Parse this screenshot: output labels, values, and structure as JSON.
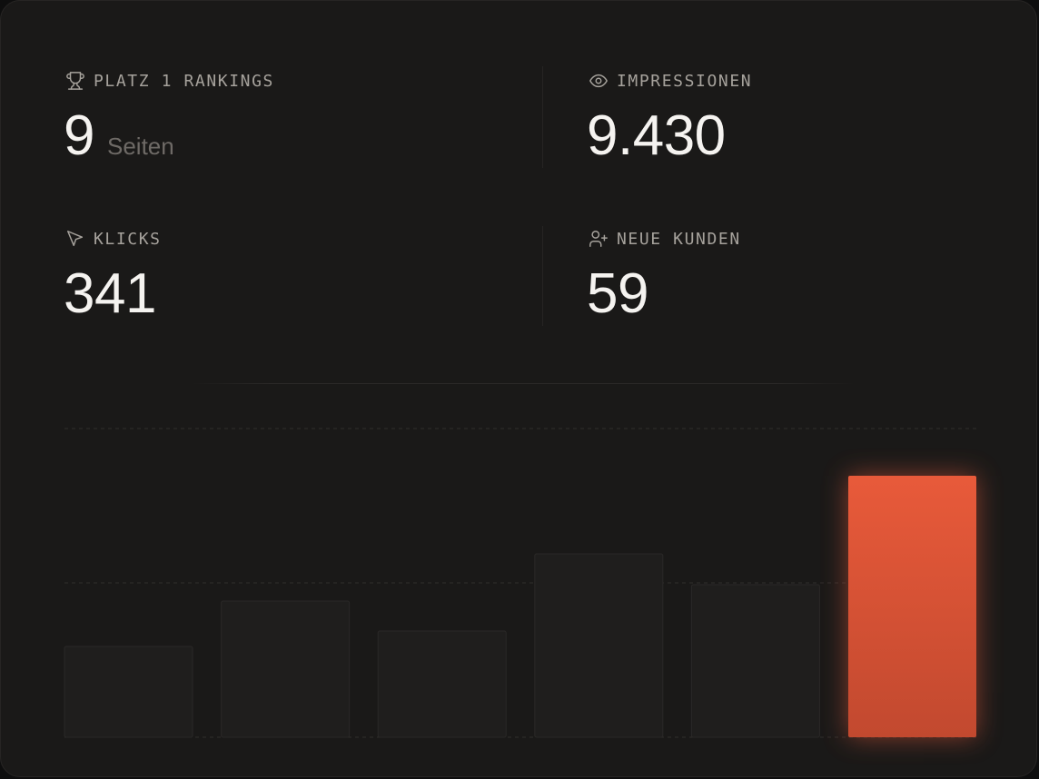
{
  "stats": [
    {
      "id": "rankings",
      "label": "PLATZ 1 RANKINGS",
      "value": "9",
      "unit": "Seiten",
      "icon": "trophy-icon"
    },
    {
      "id": "impressions",
      "label": "IMPRESSIONEN",
      "value": "9.430",
      "icon": "eye-icon"
    },
    {
      "id": "clicks",
      "label": "KLICKS",
      "value": "341",
      "icon": "cursor-icon"
    },
    {
      "id": "customers",
      "label": "NEUE KUNDEN",
      "value": "59",
      "icon": "user-plus-icon"
    }
  ],
  "colors": {
    "card_bg": "#1a1918",
    "accent": "#e2593a",
    "bar": "#1f1e1d",
    "text": "#f5f3f0",
    "label": "#a6a29c"
  },
  "chart_data": {
    "type": "bar",
    "categories": [
      "",
      "",
      "",
      "",
      "",
      ""
    ],
    "values": [
      100,
      150,
      117,
      202,
      168,
      288
    ],
    "ylim": [
      0,
      340
    ],
    "grid": true,
    "highlight_index": 5,
    "xlabel": "",
    "ylabel": ""
  }
}
